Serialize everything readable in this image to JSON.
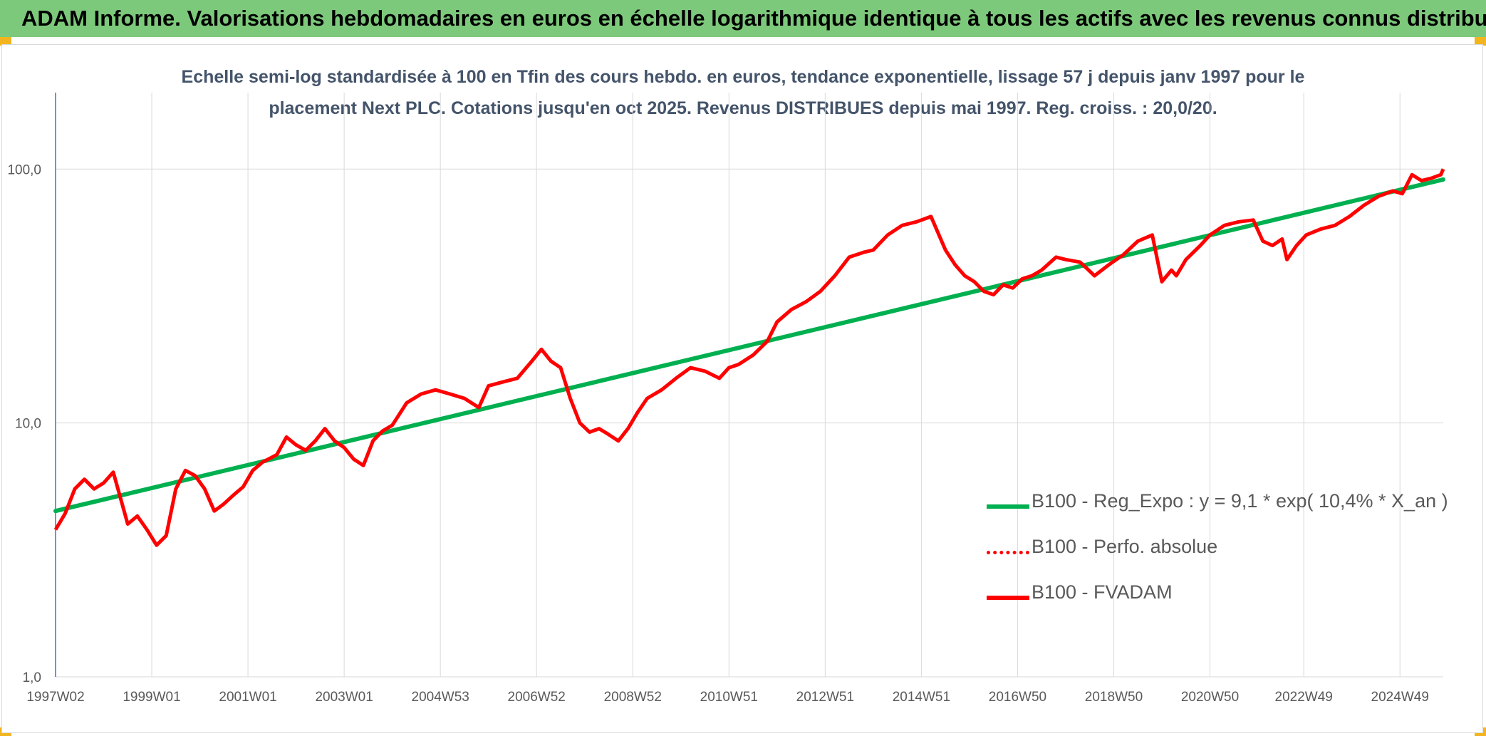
{
  "header": {
    "title": "ADAM Informe. Valorisations hebdomadaires en euros en échelle logarithmique identique à tous les actifs avec les revenus connus distribués"
  },
  "colors": {
    "title_bar": "#7dc97b",
    "regression": "#00b050",
    "fvadam": "#ff0000",
    "perfo": "#ff0000",
    "axis_text": "#595959",
    "gridline": "#d9d9d9"
  },
  "chart_data": {
    "type": "line",
    "title_line1": "Echelle semi-log standardisée à 100 en Tfin des cours hebdo. en euros, tendance exponentielle, lissage 57 j depuis janv 1997 pour le",
    "title_line2": "placement Next PLC. Cotations jusqu'en oct 2025. Revenus DISTRIBUES depuis mai 1997. Reg. croiss. : 20,0/20.",
    "y_scale": "log",
    "ylim": [
      1,
      200
    ],
    "y_ticks": [
      "1,0",
      "10,0",
      "100,0"
    ],
    "x_range": [
      1997.0,
      2025.85
    ],
    "x_tick_labels": [
      "1997W02",
      "1999W01",
      "2001W01",
      "2003W01",
      "2004W53",
      "2006W52",
      "2008W52",
      "2010W51",
      "2012W51",
      "2014W51",
      "2016W50",
      "2018W50",
      "2020W50",
      "2022W49",
      "2024W49"
    ],
    "x_tick_years": [
      1997.0,
      1999.0,
      2001.0,
      2003.0,
      2005.0,
      2007.0,
      2009.0,
      2011.0,
      2013.0,
      2015.0,
      2017.0,
      2019.0,
      2021.0,
      2022.95,
      2024.95
    ],
    "grid": true,
    "legend_position": "bottom-right",
    "series": [
      {
        "name": "B100 - Reg_Expo : y = 9,1 * exp( 10,4% *  X_an )",
        "style": "solid-green",
        "x": [
          1997.0,
          2025.85
        ],
        "y": [
          4.5,
          91
        ]
      },
      {
        "name": "B100 - Perfo. absolue",
        "style": "dotted-red",
        "x": [],
        "y": []
      },
      {
        "name": "B100 - FVADAM",
        "style": "solid-red",
        "x": [
          1997.0,
          1997.2,
          1997.4,
          1997.6,
          1997.8,
          1998.0,
          1998.2,
          1998.5,
          1998.7,
          1998.9,
          1999.1,
          1999.3,
          1999.5,
          1999.7,
          1999.9,
          2000.1,
          2000.3,
          2000.5,
          2000.7,
          2000.9,
          2001.1,
          2001.3,
          2001.6,
          2001.8,
          2002.0,
          2002.2,
          2002.4,
          2002.6,
          2002.8,
          2003.0,
          2003.2,
          2003.4,
          2003.6,
          2003.8,
          2004.0,
          2004.3,
          2004.6,
          2004.9,
          2005.2,
          2005.5,
          2005.8,
          2006.0,
          2006.3,
          2006.6,
          2006.9,
          2007.1,
          2007.3,
          2007.5,
          2007.7,
          2007.9,
          2008.1,
          2008.3,
          2008.5,
          2008.7,
          2008.9,
          2009.1,
          2009.3,
          2009.6,
          2009.9,
          2010.2,
          2010.5,
          2010.8,
          2011.0,
          2011.2,
          2011.5,
          2011.8,
          2012.0,
          2012.3,
          2012.6,
          2012.9,
          2013.2,
          2013.5,
          2013.8,
          2014.0,
          2014.3,
          2014.6,
          2014.9,
          2015.2,
          2015.5,
          2015.7,
          2015.9,
          2016.1,
          2016.3,
          2016.5,
          2016.7,
          2016.9,
          2017.1,
          2017.3,
          2017.5,
          2017.8,
          2018.0,
          2018.3,
          2018.6,
          2018.9,
          2019.2,
          2019.5,
          2019.8,
          2020.0,
          2020.2,
          2020.3,
          2020.5,
          2020.8,
          2021.0,
          2021.3,
          2021.6,
          2021.9,
          2022.1,
          2022.3,
          2022.5,
          2022.6,
          2022.8,
          2023.0,
          2023.3,
          2023.6,
          2023.9,
          2024.2,
          2024.5,
          2024.8,
          2025.0,
          2025.2,
          2025.4,
          2025.6,
          2025.8,
          2025.85
        ],
        "y": [
          3.8,
          4.4,
          5.5,
          6.0,
          5.5,
          5.8,
          6.4,
          4.0,
          4.3,
          3.8,
          3.3,
          3.6,
          5.5,
          6.5,
          6.2,
          5.5,
          4.5,
          4.8,
          5.2,
          5.6,
          6.5,
          7.0,
          7.5,
          8.8,
          8.2,
          7.8,
          8.5,
          9.5,
          8.5,
          8.0,
          7.2,
          6.8,
          8.5,
          9.3,
          9.8,
          12.0,
          13.0,
          13.5,
          13.0,
          12.5,
          11.5,
          14.0,
          14.5,
          15.0,
          17.5,
          19.5,
          17.5,
          16.5,
          12.5,
          10.0,
          9.2,
          9.5,
          9.0,
          8.5,
          9.5,
          11.0,
          12.5,
          13.5,
          15.0,
          16.5,
          16.0,
          15.0,
          16.5,
          17.0,
          18.5,
          21.0,
          25.0,
          28.0,
          30.0,
          33.0,
          38.0,
          45.0,
          47.0,
          48.0,
          55.0,
          60.0,
          62.0,
          65.0,
          48.0,
          42.0,
          38.0,
          36.0,
          33.0,
          32.0,
          35.0,
          34.0,
          37.0,
          38.0,
          40.0,
          45.0,
          44.0,
          43.0,
          38.0,
          42.0,
          46.0,
          52.0,
          55.0,
          36.0,
          40.0,
          38.0,
          44.0,
          50.0,
          55.0,
          60.0,
          62.0,
          63.0,
          52.0,
          50.0,
          53.0,
          44.0,
          50.0,
          55.0,
          58.0,
          60.0,
          65.0,
          72.0,
          78.0,
          82.0,
          80.0,
          95.0,
          90.0,
          92.0,
          95.0,
          100.0
        ]
      }
    ]
  }
}
